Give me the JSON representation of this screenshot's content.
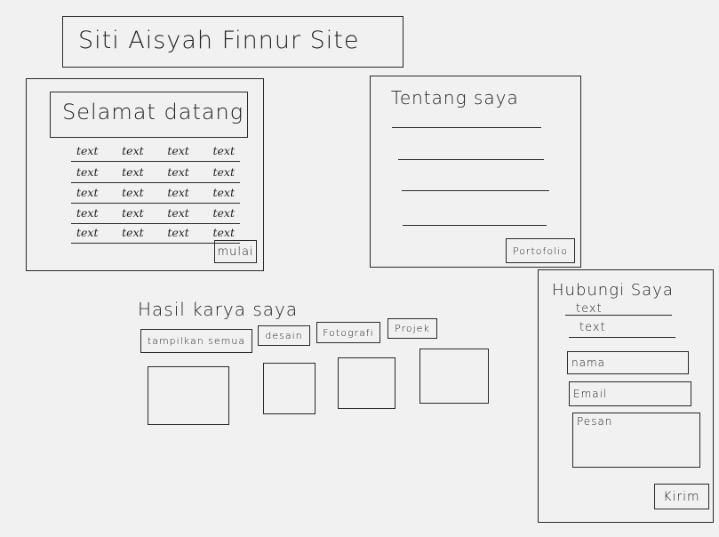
{
  "site_title": "Siti Aisyah Finnur Site",
  "welcome": {
    "heading": "Selamat datang",
    "rows": [
      [
        "text",
        "text",
        "text",
        "text"
      ],
      [
        "text",
        "text",
        "text",
        "text"
      ],
      [
        "text",
        "text",
        "text",
        "text"
      ],
      [
        "text",
        "text",
        "text",
        "text"
      ],
      [
        "text",
        "text",
        "text",
        "text"
      ]
    ],
    "button": "mulai"
  },
  "about": {
    "heading": "Tentang saya",
    "button": "Portofolio"
  },
  "portfolio": {
    "heading": "Hasil karya saya",
    "filters": [
      "tampilkan semua",
      "desain",
      "Fotografi",
      "Projek"
    ]
  },
  "contact": {
    "heading": "Hubungi Saya",
    "lines": [
      "text",
      "text"
    ],
    "name_placeholder": "nama",
    "email_placeholder": "Email",
    "message_placeholder": "Pesan",
    "submit": "Kirim"
  }
}
